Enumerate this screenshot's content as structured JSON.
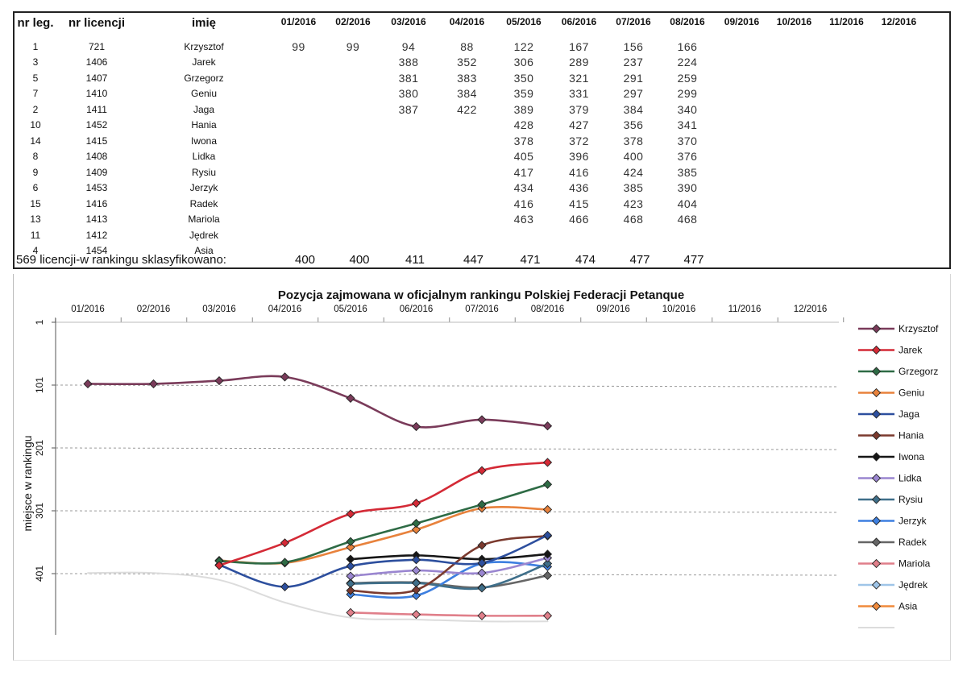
{
  "table": {
    "headers": {
      "nr_leg": "nr leg.",
      "nr_licencji": "nr licencji",
      "imie": "imię",
      "months": [
        "01/2016",
        "02/2016",
        "03/2016",
        "04/2016",
        "05/2016",
        "06/2016",
        "07/2016",
        "08/2016",
        "09/2016",
        "10/2016",
        "11/2016",
        "12/2016"
      ]
    },
    "rows": [
      {
        "nr_leg": "1",
        "licencja": "721",
        "imie": "Krzysztof",
        "values": [
          "99",
          "99",
          "94",
          "88",
          "122",
          "167",
          "156",
          "166",
          "",
          "",
          "",
          ""
        ]
      },
      {
        "nr_leg": "3",
        "licencja": "1406",
        "imie": "Jarek",
        "values": [
          "",
          "",
          "388",
          "352",
          "306",
          "289",
          "237",
          "224",
          "",
          "",
          "",
          ""
        ]
      },
      {
        "nr_leg": "5",
        "licencja": "1407",
        "imie": "Grzegorz",
        "values": [
          "",
          "",
          "381",
          "383",
          "350",
          "321",
          "291",
          "259",
          "",
          "",
          "",
          ""
        ]
      },
      {
        "nr_leg": "7",
        "licencja": "1410",
        "imie": "Geniu",
        "values": [
          "",
          "",
          "380",
          "384",
          "359",
          "331",
          "297",
          "299",
          "",
          "",
          "",
          ""
        ]
      },
      {
        "nr_leg": "2",
        "licencja": "1411",
        "imie": "Jaga",
        "values": [
          "",
          "",
          "387",
          "422",
          "389",
          "379",
          "384",
          "340",
          "",
          "",
          "",
          ""
        ]
      },
      {
        "nr_leg": "10",
        "licencja": "1452",
        "imie": "Hania",
        "values": [
          "",
          "",
          "",
          "",
          "428",
          "427",
          "356",
          "341",
          "",
          "",
          "",
          ""
        ]
      },
      {
        "nr_leg": "14",
        "licencja": "1415",
        "imie": "Iwona",
        "values": [
          "",
          "",
          "",
          "",
          "378",
          "372",
          "378",
          "370",
          "",
          "",
          "",
          ""
        ]
      },
      {
        "nr_leg": "8",
        "licencja": "1408",
        "imie": "Lidka",
        "values": [
          "",
          "",
          "",
          "",
          "405",
          "396",
          "400",
          "376",
          "",
          "",
          "",
          ""
        ]
      },
      {
        "nr_leg": "9",
        "licencja": "1409",
        "imie": "Rysiu",
        "values": [
          "",
          "",
          "",
          "",
          "417",
          "416",
          "424",
          "385",
          "",
          "",
          "",
          ""
        ]
      },
      {
        "nr_leg": "6",
        "licencja": "1453",
        "imie": "Jerzyk",
        "values": [
          "",
          "",
          "",
          "",
          "434",
          "436",
          "385",
          "390",
          "",
          "",
          "",
          ""
        ]
      },
      {
        "nr_leg": "15",
        "licencja": "1416",
        "imie": "Radek",
        "values": [
          "",
          "",
          "",
          "",
          "416",
          "415",
          "423",
          "404",
          "",
          "",
          "",
          ""
        ]
      },
      {
        "nr_leg": "13",
        "licencja": "1413",
        "imie": "Mariola",
        "values": [
          "",
          "",
          "",
          "",
          "463",
          "466",
          "468",
          "468",
          "",
          "",
          "",
          ""
        ]
      },
      {
        "nr_leg": "11",
        "licencja": "1412",
        "imie": "Jędrek",
        "values": [
          "",
          "",
          "",
          "",
          "",
          "",
          "",
          "",
          "",
          "",
          "",
          ""
        ]
      },
      {
        "nr_leg": "4",
        "licencja": "1454",
        "imie": "Asia",
        "values": [
          "",
          "",
          "",
          "",
          "",
          "",
          "",
          "",
          "",
          "",
          "",
          ""
        ]
      }
    ],
    "footer": {
      "label": "569 licencji-w rankingu sklasyfikowano:",
      "totals": [
        "400",
        "400",
        "411",
        "447",
        "471",
        "474",
        "477",
        "477",
        "",
        "",
        "",
        ""
      ]
    }
  },
  "chart_data": {
    "type": "line",
    "title": "Pozycja zajmowana w oficjalnym rankingu Polskiej Federacji Petanque",
    "ylabel": "miejsce w rankingu",
    "xlabel": "",
    "categories": [
      "01/2016",
      "02/2016",
      "03/2016",
      "04/2016",
      "05/2016",
      "06/2016",
      "07/2016",
      "08/2016",
      "09/2016",
      "10/2016",
      "11/2016",
      "12/2016"
    ],
    "yticks": [
      1,
      101,
      201,
      301,
      401
    ],
    "ylim": [
      1,
      501
    ],
    "y_inverted": true,
    "x_axis_position": "top",
    "grid": "horizontal dashed",
    "legend_position": "right",
    "series": [
      {
        "name": "Krzysztof",
        "color": "#7a3b5a",
        "values": [
          99,
          99,
          94,
          88,
          122,
          167,
          156,
          166,
          null,
          null,
          null,
          null
        ]
      },
      {
        "name": "Jarek",
        "color": "#d42a36",
        "values": [
          null,
          null,
          388,
          352,
          306,
          289,
          237,
          224,
          null,
          null,
          null,
          null
        ]
      },
      {
        "name": "Grzegorz",
        "color": "#2e6b45",
        "values": [
          null,
          null,
          381,
          383,
          350,
          321,
          291,
          259,
          null,
          null,
          null,
          null
        ]
      },
      {
        "name": "Geniu",
        "color": "#e8823c",
        "values": [
          null,
          null,
          380,
          384,
          359,
          331,
          297,
          299,
          null,
          null,
          null,
          null
        ]
      },
      {
        "name": "Jaga",
        "color": "#2d4f9e",
        "values": [
          null,
          null,
          387,
          422,
          389,
          379,
          384,
          340,
          null,
          null,
          null,
          null
        ]
      },
      {
        "name": "Hania",
        "color": "#7b3a2e",
        "values": [
          null,
          null,
          null,
          null,
          428,
          427,
          356,
          341,
          null,
          null,
          null,
          null
        ]
      },
      {
        "name": "Iwona",
        "color": "#161616",
        "values": [
          null,
          null,
          null,
          null,
          378,
          372,
          378,
          370,
          null,
          null,
          null,
          null
        ]
      },
      {
        "name": "Lidka",
        "color": "#9a86d0",
        "values": [
          null,
          null,
          null,
          null,
          405,
          396,
          400,
          376,
          null,
          null,
          null,
          null
        ]
      },
      {
        "name": "Rysiu",
        "color": "#3f6f8a",
        "values": [
          null,
          null,
          null,
          null,
          417,
          416,
          424,
          385,
          null,
          null,
          null,
          null
        ]
      },
      {
        "name": "Jerzyk",
        "color": "#3d7fe0",
        "values": [
          null,
          null,
          null,
          null,
          434,
          436,
          385,
          390,
          null,
          null,
          null,
          null
        ]
      },
      {
        "name": "Radek",
        "color": "#666666",
        "values": [
          null,
          null,
          null,
          null,
          416,
          415,
          423,
          404,
          null,
          null,
          null,
          null
        ]
      },
      {
        "name": "Mariola",
        "color": "#e07f8a",
        "values": [
          null,
          null,
          null,
          null,
          463,
          466,
          468,
          468,
          null,
          null,
          null,
          null
        ]
      },
      {
        "name": "Jędrek",
        "color": "#9fc5e8",
        "values": [
          null,
          null,
          null,
          null,
          null,
          null,
          null,
          null,
          null,
          null,
          null,
          null
        ]
      },
      {
        "name": "Asia",
        "color": "#f08a3c",
        "values": [
          null,
          null,
          null,
          null,
          null,
          null,
          null,
          null,
          null,
          null,
          null,
          null
        ]
      },
      {
        "name": "",
        "color": "#dcdcdc",
        "values": [
          400,
          400,
          411,
          447,
          471,
          474,
          477,
          477,
          null,
          null,
          null,
          null
        ]
      }
    ]
  }
}
